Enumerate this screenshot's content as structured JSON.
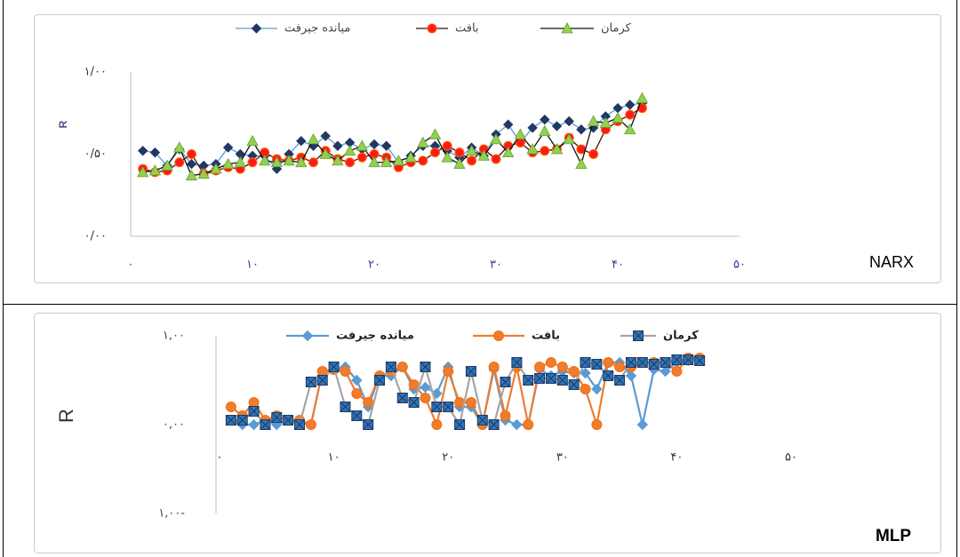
{
  "chart_data": [
    {
      "type": "line",
      "x_label": "NARX",
      "y_label": "R",
      "x": [
        1,
        2,
        3,
        4,
        5,
        6,
        7,
        8,
        9,
        10,
        11,
        12,
        13,
        14,
        15,
        16,
        17,
        18,
        19,
        20,
        21,
        22,
        23,
        24,
        25,
        26,
        27,
        28,
        29,
        30,
        31,
        32,
        33,
        34,
        35,
        36,
        37,
        38,
        39,
        40,
        41,
        42
      ],
      "xlim": [
        0,
        50
      ],
      "xticks": [
        {
          "value": 0,
          "label": "۰"
        },
        {
          "value": 10,
          "label": "۱۰"
        },
        {
          "value": 20,
          "label": "۲۰"
        },
        {
          "value": 30,
          "label": "۳۰"
        },
        {
          "value": 40,
          "label": "۴۰"
        },
        {
          "value": 50,
          "label": "۵۰"
        }
      ],
      "ylim": [
        0,
        1
      ],
      "yticks": [
        {
          "value": 0,
          "label": "۰/۰۰"
        },
        {
          "value": 0.5,
          "label": "۰/۵۰"
        },
        {
          "value": 1,
          "label": "۱/۰۰"
        }
      ],
      "grid": false,
      "legend": "top",
      "series": [
        {
          "name": "میانده جیرفت",
          "color": "#5b9bd5",
          "marker": "diamond",
          "marker_color": "#203864",
          "values": [
            0.52,
            0.51,
            0.43,
            0.53,
            0.44,
            0.43,
            0.44,
            0.54,
            0.5,
            0.49,
            0.49,
            0.41,
            0.5,
            0.58,
            0.55,
            0.61,
            0.55,
            0.57,
            0.53,
            0.56,
            0.55,
            0.45,
            0.49,
            0.55,
            0.55,
            0.52,
            0.48,
            0.54,
            0.49,
            0.62,
            0.68,
            0.57,
            0.66,
            0.71,
            0.67,
            0.7,
            0.65,
            0.66,
            0.73,
            0.78,
            0.8,
            0.81
          ]
        },
        {
          "name": "بافت",
          "color": "#3a1010",
          "marker": "circle",
          "marker_color": "#ff1a1a",
          "values": [
            0.41,
            0.39,
            0.4,
            0.45,
            0.5,
            0.38,
            0.4,
            0.42,
            0.41,
            0.45,
            0.51,
            0.47,
            0.46,
            0.48,
            0.45,
            0.52,
            0.47,
            0.45,
            0.48,
            0.5,
            0.48,
            0.42,
            0.45,
            0.46,
            0.51,
            0.55,
            0.51,
            0.46,
            0.53,
            0.47,
            0.55,
            0.57,
            0.51,
            0.52,
            0.53,
            0.6,
            0.53,
            0.5,
            0.65,
            0.7,
            0.74,
            0.78
          ]
        },
        {
          "name": "کرمان",
          "color": "#111111",
          "marker": "triangle",
          "marker_color": "#92d050",
          "values": [
            0.39,
            0.4,
            0.43,
            0.54,
            0.37,
            0.38,
            0.41,
            0.44,
            0.45,
            0.58,
            0.46,
            0.45,
            0.46,
            0.45,
            0.59,
            0.5,
            0.46,
            0.52,
            0.55,
            0.45,
            0.45,
            0.46,
            0.48,
            0.57,
            0.62,
            0.48,
            0.44,
            0.52,
            0.49,
            0.59,
            0.51,
            0.62,
            0.53,
            0.64,
            0.53,
            0.59,
            0.44,
            0.7,
            0.69,
            0.72,
            0.65,
            0.84
          ]
        }
      ]
    },
    {
      "type": "line",
      "x_label": "MLP",
      "y_label": "R",
      "x": [
        1,
        2,
        3,
        4,
        5,
        6,
        7,
        8,
        9,
        10,
        11,
        12,
        13,
        14,
        15,
        16,
        17,
        18,
        19,
        20,
        21,
        22,
        23,
        24,
        25,
        26,
        27,
        28,
        29,
        30,
        31,
        32,
        33,
        34,
        35,
        36,
        37,
        38,
        39,
        40,
        41,
        42
      ],
      "xlim": [
        0,
        50
      ],
      "xticks": [
        {
          "value": 0,
          "label": "۰"
        },
        {
          "value": 10,
          "label": "۱۰"
        },
        {
          "value": 20,
          "label": "۲۰"
        },
        {
          "value": 30,
          "label": "۳۰"
        },
        {
          "value": 40,
          "label": "۴۰"
        },
        {
          "value": 50,
          "label": "۵۰"
        }
      ],
      "ylim": [
        -1,
        1
      ],
      "yticks": [
        {
          "value": -1,
          "label": "۱,۰۰-"
        },
        {
          "value": 0,
          "label": "۰,۰۰"
        },
        {
          "value": 1,
          "label": "۱,۰۰"
        }
      ],
      "grid": false,
      "legend": "top",
      "series": [
        {
          "name": "میانده جیرفت",
          "color": "#5b9bd5",
          "marker": "diamond",
          "marker_color": "#5b9bd5",
          "values": [
            0.05,
            0,
            0,
            0.05,
            0,
            0.05,
            0.02,
            0,
            0.6,
            0.62,
            0.65,
            0.5,
            0.2,
            0.55,
            0.55,
            0.65,
            0.4,
            0.42,
            0.35,
            0.65,
            0.2,
            0.2,
            0,
            0.62,
            0.05,
            0,
            0,
            0.62,
            0.55,
            0.6,
            0.58,
            0.58,
            0.4,
            0.7,
            0.7,
            0.55,
            0,
            0.62,
            0.6,
            0.7,
            0.72,
            0.75
          ]
        },
        {
          "name": "بافت",
          "color": "#ed7d31",
          "marker": "circle",
          "marker_color": "#ed7d31",
          "values": [
            0.2,
            0.1,
            0.25,
            0.05,
            0.1,
            0.05,
            0.05,
            0,
            0.6,
            0.62,
            0.6,
            0.35,
            0.25,
            0.55,
            0.6,
            0.65,
            0.45,
            0.3,
            0,
            0.6,
            0.25,
            0.25,
            0,
            0.65,
            0.1,
            0.65,
            0,
            0.65,
            0.7,
            0.65,
            0.6,
            0.4,
            0,
            0.7,
            0.65,
            0.65,
            0.7,
            0.7,
            0.7,
            0.6,
            0.75,
            0.75
          ]
        },
        {
          "name": "کرمان",
          "color": "#a5a5a5",
          "marker": "square",
          "marker_color": "#2e75b6",
          "values": [
            0.05,
            0.05,
            0.15,
            0,
            0.08,
            0.05,
            0,
            0.48,
            0.5,
            0.65,
            0.2,
            0.1,
            0,
            0.5,
            0.65,
            0.3,
            0.25,
            0.65,
            0.2,
            0.2,
            0,
            0.6,
            0.05,
            0,
            0.48,
            0.7,
            0.5,
            0.52,
            0.52,
            0.5,
            0.45,
            0.7,
            0.68,
            0.55,
            0.5,
            0.7,
            0.7,
            0.68,
            0.7,
            0.73,
            0.73,
            0.72
          ]
        }
      ]
    }
  ]
}
